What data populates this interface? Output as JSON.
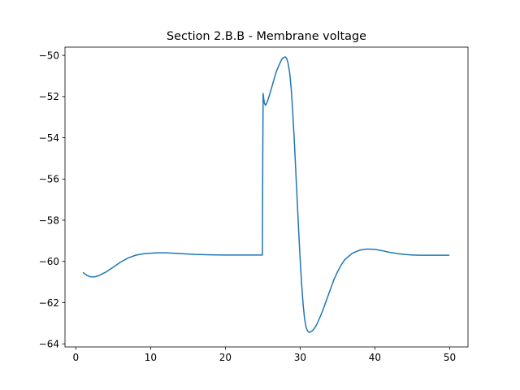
{
  "chart_data": {
    "type": "line",
    "title": "Section 2.B.B - Membrane voltage",
    "xlabel": "",
    "ylabel": "",
    "xlim": [
      -1.45,
      52.45
    ],
    "ylim": [
      -64.15,
      -49.6
    ],
    "xticks": [
      0,
      10,
      20,
      30,
      40,
      50
    ],
    "yticks": [
      -64,
      -62,
      -60,
      -58,
      -56,
      -54,
      -52,
      -50
    ],
    "xtick_labels": [
      "0",
      "10",
      "20",
      "30",
      "40",
      "50"
    ],
    "ytick_labels": [
      "−64",
      "−62",
      "−60",
      "−58",
      "−56",
      "−54",
      "−52",
      "−50"
    ],
    "grid": false,
    "legend": "none",
    "line_color": "#1f77b4",
    "series": [
      {
        "x": [
          1.0,
          1.5,
          2.0,
          2.5,
          3.0,
          4.0,
          5.0,
          6.0,
          7.0,
          8.0,
          9.0,
          10.0,
          11.0,
          12.0,
          13.0,
          14.0,
          15.0,
          16.0,
          18.0,
          20.0,
          22.0,
          24.0,
          24.95,
          25.0,
          25.05,
          25.1,
          25.2,
          25.35,
          25.5,
          25.7,
          26.0,
          26.4,
          26.8,
          27.2,
          27.6,
          28.0,
          28.2,
          28.4,
          28.6,
          28.8,
          29.0,
          29.2,
          29.4,
          29.6,
          29.8,
          30.0,
          30.2,
          30.4,
          30.6,
          30.8,
          31.0,
          31.2,
          31.4,
          31.6,
          31.8,
          32.0,
          32.3,
          32.6,
          33.0,
          33.5,
          34.0,
          34.5,
          35.0,
          35.5,
          36.0,
          37.0,
          38.0,
          39.0,
          40.0,
          41.0,
          42.0,
          43.0,
          44.0,
          45.0,
          46.0,
          47.0,
          48.0,
          49.0,
          49.9
        ],
        "values": [
          -60.55,
          -60.68,
          -60.75,
          -60.75,
          -60.7,
          -60.52,
          -60.28,
          -60.03,
          -59.83,
          -59.7,
          -59.63,
          -59.6,
          -59.58,
          -59.58,
          -59.6,
          -59.62,
          -59.64,
          -59.66,
          -59.68,
          -59.69,
          -59.69,
          -59.69,
          -59.69,
          -55.0,
          -51.85,
          -52.0,
          -52.3,
          -52.42,
          -52.35,
          -52.15,
          -51.8,
          -51.3,
          -50.8,
          -50.45,
          -50.15,
          -50.07,
          -50.15,
          -50.4,
          -50.85,
          -51.6,
          -52.7,
          -54.0,
          -55.5,
          -57.0,
          -58.5,
          -59.9,
          -61.1,
          -62.1,
          -62.8,
          -63.2,
          -63.38,
          -63.44,
          -63.42,
          -63.37,
          -63.3,
          -63.2,
          -63.0,
          -62.75,
          -62.4,
          -61.9,
          -61.4,
          -60.9,
          -60.5,
          -60.17,
          -59.9,
          -59.6,
          -59.45,
          -59.4,
          -59.42,
          -59.48,
          -59.56,
          -59.62,
          -59.66,
          -59.69,
          -59.7,
          -59.7,
          -59.7,
          -59.7,
          -59.7
        ]
      }
    ]
  }
}
